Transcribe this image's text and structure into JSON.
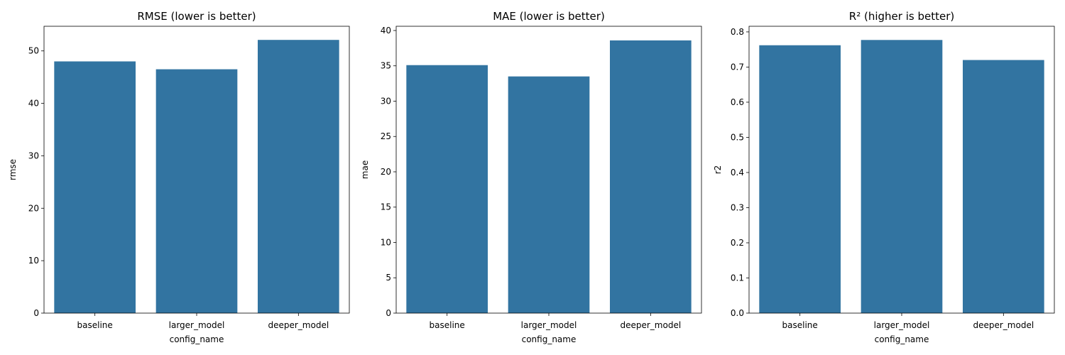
{
  "chart_data": [
    {
      "type": "bar",
      "title": "RMSE (lower is better)",
      "xlabel": "config_name",
      "ylabel": "rmse",
      "categories": [
        "baseline",
        "larger_model",
        "deeper_model"
      ],
      "values": [
        48.0,
        46.5,
        52.1
      ],
      "ylim": [
        0,
        54.7
      ],
      "yticks": [
        0,
        10,
        20,
        30,
        40,
        50
      ],
      "ytick_labels": [
        "0",
        "10",
        "20",
        "30",
        "40",
        "50"
      ],
      "bar_color": "#3274a1"
    },
    {
      "type": "bar",
      "title": "MAE (lower is better)",
      "xlabel": "config_name",
      "ylabel": "mae",
      "categories": [
        "baseline",
        "larger_model",
        "deeper_model"
      ],
      "values": [
        35.1,
        33.5,
        38.6
      ],
      "ylim": [
        0,
        40.6
      ],
      "yticks": [
        0,
        5,
        10,
        15,
        20,
        25,
        30,
        35,
        40
      ],
      "ytick_labels": [
        "0",
        "5",
        "10",
        "15",
        "20",
        "25",
        "30",
        "35",
        "40"
      ],
      "bar_color": "#3274a1"
    },
    {
      "type": "bar",
      "title": "R² (higher is better)",
      "xlabel": "config_name",
      "ylabel": "r2",
      "categories": [
        "baseline",
        "larger_model",
        "deeper_model"
      ],
      "values": [
        0.762,
        0.777,
        0.72
      ],
      "ylim": [
        0,
        0.816
      ],
      "yticks": [
        0,
        0.1,
        0.2,
        0.3,
        0.4,
        0.5,
        0.6,
        0.7,
        0.8
      ],
      "ytick_labels": [
        "0.0",
        "0.1",
        "0.2",
        "0.3",
        "0.4",
        "0.5",
        "0.6",
        "0.7",
        "0.8"
      ],
      "bar_color": "#3274a1"
    }
  ]
}
